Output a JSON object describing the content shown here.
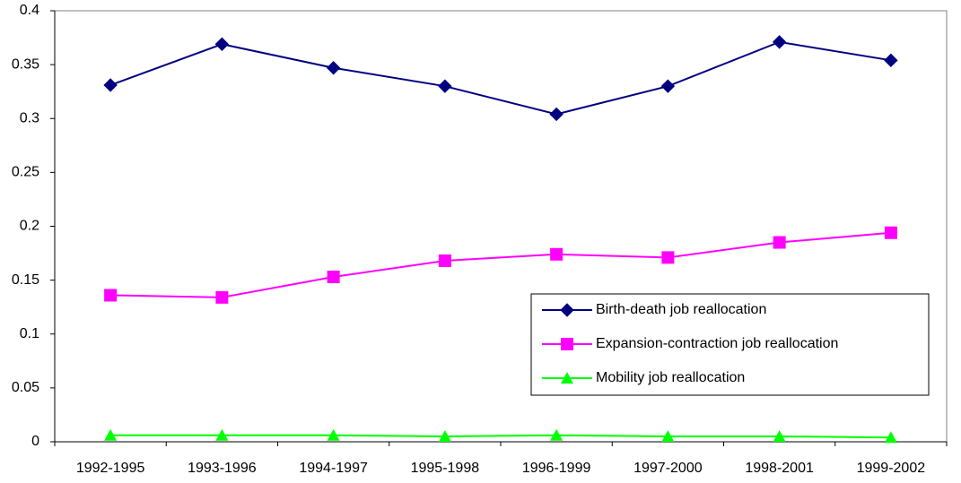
{
  "chart_data": {
    "type": "line",
    "categories": [
      "1992-1995",
      "1993-1996",
      "1994-1997",
      "1995-1998",
      "1996-1999",
      "1997-2000",
      "1998-2001",
      "1999-2002"
    ],
    "series": [
      {
        "name": "Birth-death job reallocation",
        "color": "#000080",
        "marker": "diamond",
        "values": [
          0.331,
          0.369,
          0.347,
          0.33,
          0.304,
          0.33,
          0.371,
          0.354
        ]
      },
      {
        "name": "Expansion-contraction job reallocation",
        "color": "#ff00ff",
        "marker": "square",
        "values": [
          0.136,
          0.134,
          0.153,
          0.168,
          0.174,
          0.171,
          0.185,
          0.194
        ]
      },
      {
        "name": "Mobility job reallocation",
        "color": "#00ff00",
        "marker": "triangle",
        "values": [
          0.006,
          0.006,
          0.006,
          0.005,
          0.006,
          0.005,
          0.005,
          0.004
        ]
      }
    ],
    "ylim": [
      0,
      0.4
    ],
    "yticks": [
      0,
      0.05,
      0.1,
      0.15,
      0.2,
      0.25,
      0.3,
      0.35,
      0.4
    ],
    "grid": false,
    "legend": "lower right"
  }
}
